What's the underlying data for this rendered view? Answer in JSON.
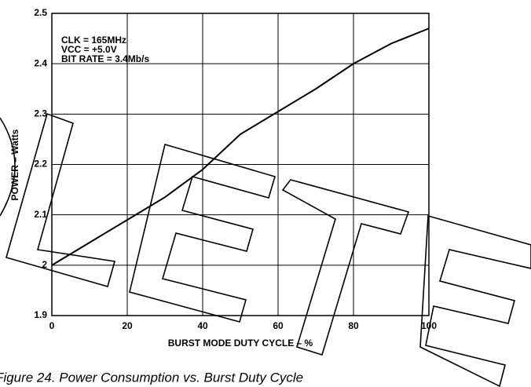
{
  "chart_data": {
    "type": "line",
    "caption": "Figure 24. Power Consumption vs. Burst Duty Cycle",
    "xlabel": "BURST MODE DUTY CYCLE – %",
    "ylabel": "POWER – Watts",
    "annotations": [
      "CLK = 165MHz",
      "VCC = +5.0V",
      "BIT RATE = 3.4Mb/s"
    ],
    "x": [
      0,
      10,
      20,
      30,
      40,
      50,
      60,
      70,
      80,
      90,
      100
    ],
    "series": [
      {
        "name": "Power",
        "color": "#000000",
        "values": [
          2.0,
          2.045,
          2.09,
          2.135,
          2.19,
          2.26,
          2.305,
          2.35,
          2.4,
          2.44,
          2.47
        ]
      }
    ],
    "xlim": [
      0,
      100
    ],
    "xticks": [
      0,
      20,
      40,
      60,
      80,
      100
    ],
    "ylim": [
      1.9,
      2.5
    ],
    "yticks": [
      1.9,
      2.0,
      2.1,
      2.2,
      2.3,
      2.4,
      2.5
    ],
    "grid": true
  }
}
